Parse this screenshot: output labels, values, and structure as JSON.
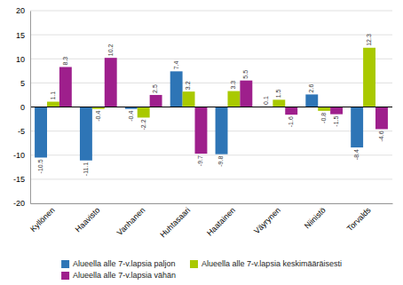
{
  "chart_data": {
    "type": "bar",
    "categories": [
      "Kyllönen",
      "Haavisto",
      "Vanhanen",
      "Huhtasaari",
      "Haatainen",
      "Väyrynen",
      "Niinistö",
      "Torvalds"
    ],
    "series": [
      {
        "name": "Alueella alle 7-v.lapsia paljon",
        "color": "#2e75b6",
        "values": [
          -10.5,
          -11.1,
          -0.4,
          7.4,
          -9.8,
          0.1,
          2.6,
          -8.4
        ]
      },
      {
        "name": "Alueella alle 7-v.lapsia keskimääräisesti",
        "color": "#a9c900",
        "values": [
          1.1,
          -0.4,
          -2.2,
          3.2,
          3.3,
          1.5,
          -0.8,
          12.3
        ]
      },
      {
        "name": "Alueella alle 7-v.lapsia vähän",
        "color": "#9e1f8c",
        "values": [
          8.3,
          10.2,
          2.5,
          -9.7,
          5.5,
          -1.6,
          -1.5,
          -4.6
        ]
      }
    ],
    "ylim": [
      -20,
      20
    ],
    "yticks": [
      -20,
      -15,
      -10,
      -5,
      0,
      5,
      10,
      15,
      20
    ],
    "grid": true,
    "data_labels": true,
    "legend": "bottom"
  }
}
